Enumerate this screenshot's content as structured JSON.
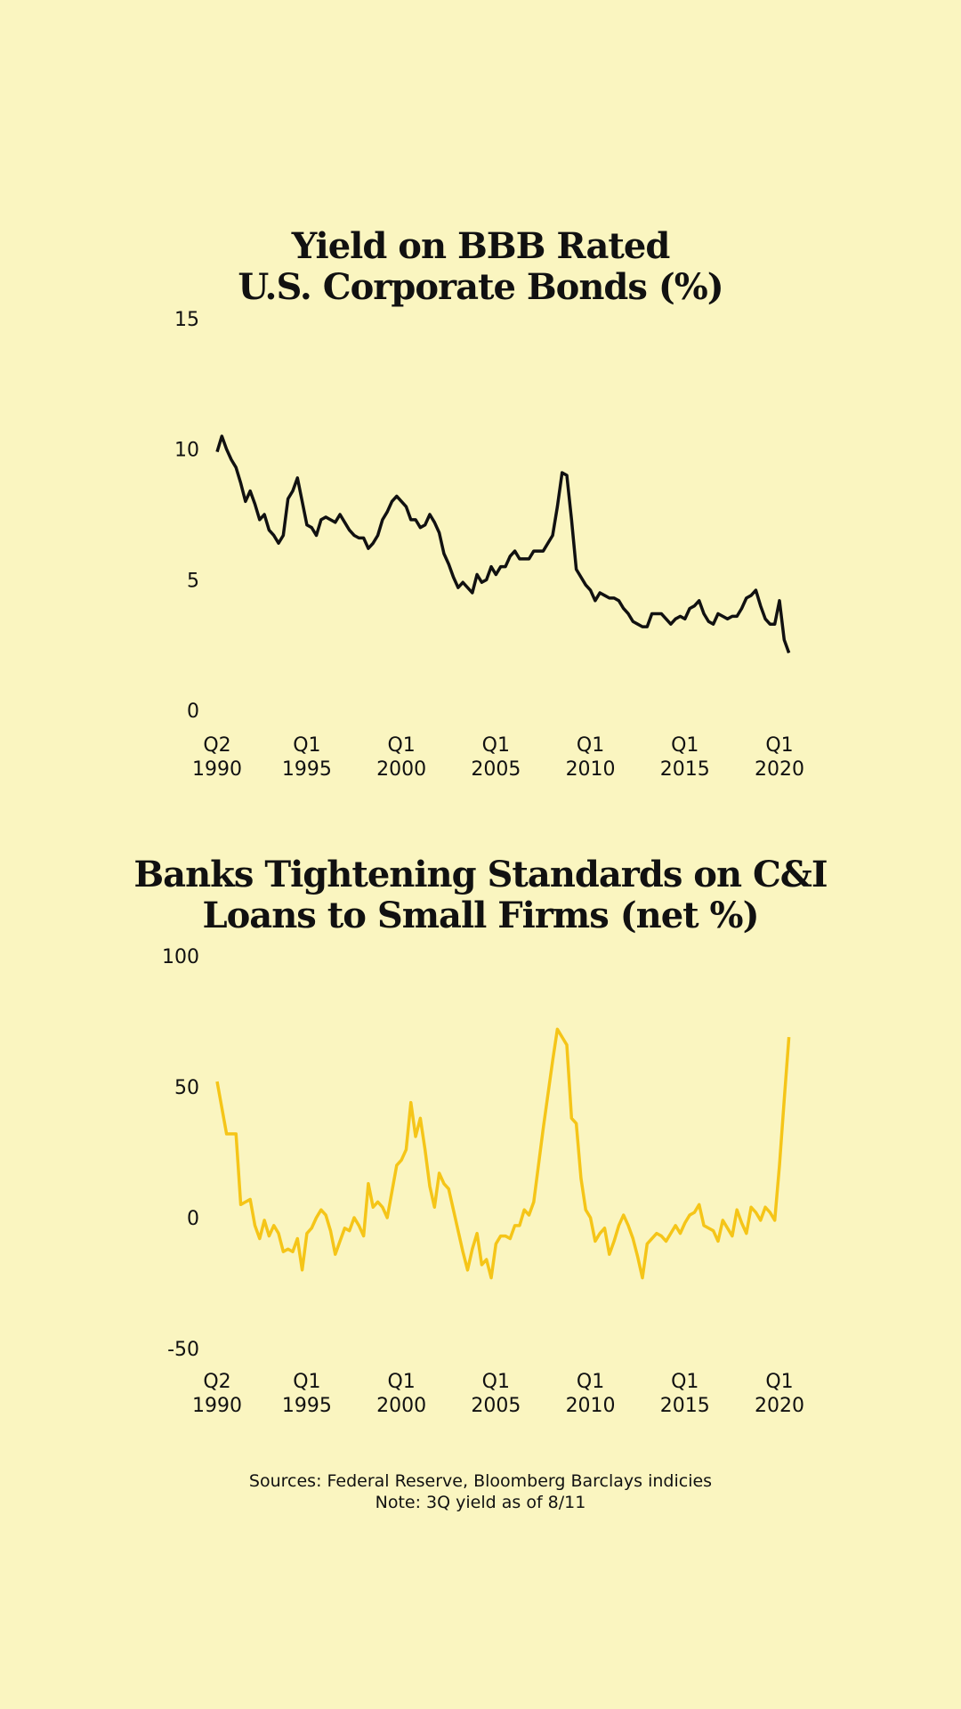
{
  "chart_data": [
    {
      "type": "line",
      "title": [
        "Yield on BBB Rated",
        "U.S. Corporate Bonds (%)"
      ],
      "categories": [
        "Q2 1990",
        null,
        null,
        null,
        null,
        null,
        null,
        null,
        null,
        null,
        null,
        null,
        null,
        null,
        null,
        null,
        null,
        null,
        null,
        "Q1 1995",
        null,
        null,
        null,
        null,
        null,
        null,
        null,
        null,
        null,
        null,
        null,
        null,
        null,
        null,
        null,
        null,
        null,
        null,
        null,
        "Q1 2000",
        null,
        null,
        null,
        null,
        null,
        null,
        null,
        null,
        null,
        null,
        null,
        null,
        null,
        null,
        null,
        null,
        null,
        null,
        null,
        "Q1 2005",
        null,
        null,
        null,
        null,
        null,
        null,
        null,
        null,
        null,
        null,
        null,
        null,
        null,
        null,
        null,
        null,
        null,
        null,
        null,
        "Q1 2010",
        null,
        null,
        null,
        null,
        null,
        null,
        null,
        null,
        null,
        null,
        null,
        null,
        null,
        null,
        null,
        null,
        null,
        null,
        null,
        "Q1 2015",
        null,
        null,
        null,
        null,
        null,
        null,
        null,
        null,
        null,
        null,
        null,
        null,
        null,
        null,
        null,
        null,
        null,
        null,
        null,
        "Q1 2020",
        null,
        null
      ],
      "series": [
        {
          "color": "#111111",
          "values": [
            9.9,
            10.5,
            10.0,
            9.6,
            9.3,
            8.7,
            8.0,
            8.4,
            7.9,
            7.3,
            7.5,
            6.9,
            6.7,
            6.4,
            6.7,
            8.1,
            8.4,
            8.9,
            8.0,
            7.1,
            7.0,
            6.7,
            7.3,
            7.4,
            7.3,
            7.2,
            7.5,
            7.2,
            6.9,
            6.7,
            6.6,
            6.6,
            6.2,
            6.4,
            6.7,
            7.3,
            7.6,
            8.0,
            8.2,
            8.0,
            7.8,
            7.3,
            7.3,
            7.0,
            7.1,
            7.5,
            7.2,
            6.8,
            6.0,
            5.6,
            5.1,
            4.7,
            4.9,
            4.7,
            4.5,
            5.2,
            4.9,
            5.0,
            5.5,
            5.2,
            5.5,
            5.5,
            5.9,
            6.1,
            5.8,
            5.8,
            5.8,
            6.1,
            6.1,
            6.1,
            6.4,
            6.7,
            7.8,
            9.1,
            9.0,
            7.3,
            5.4,
            5.1,
            4.8,
            4.6,
            4.2,
            4.5,
            4.4,
            4.3,
            4.3,
            4.2,
            3.9,
            3.7,
            3.4,
            3.3,
            3.2,
            3.2,
            3.7,
            3.7,
            3.7,
            3.5,
            3.3,
            3.5,
            3.6,
            3.5,
            3.9,
            4.0,
            4.2,
            3.7,
            3.4,
            3.3,
            3.7,
            3.6,
            3.5,
            3.6,
            3.6,
            3.9,
            4.3,
            4.4,
            4.6,
            4.0,
            3.5,
            3.3,
            3.3,
            4.2,
            2.7,
            2.2
          ]
        }
      ],
      "ylim": [
        0,
        15
      ],
      "yticks": [
        0,
        5,
        10,
        15
      ]
    },
    {
      "type": "line",
      "title": [
        "Banks Tightening Standards on C&I",
        "Loans to Small Firms (net %)"
      ],
      "categories": [
        "Q2 1990",
        null,
        null,
        null,
        null,
        null,
        null,
        null,
        null,
        null,
        null,
        null,
        null,
        null,
        null,
        null,
        null,
        null,
        null,
        "Q1 1995",
        null,
        null,
        null,
        null,
        null,
        null,
        null,
        null,
        null,
        null,
        null,
        null,
        null,
        null,
        null,
        null,
        null,
        null,
        null,
        "Q1 2000",
        null,
        null,
        null,
        null,
        null,
        null,
        null,
        null,
        null,
        null,
        null,
        null,
        null,
        null,
        null,
        null,
        null,
        null,
        null,
        "Q1 2005",
        null,
        null,
        null,
        null,
        null,
        null,
        null,
        null,
        null,
        null,
        null,
        null,
        null,
        null,
        null,
        null,
        null,
        null,
        null,
        "Q1 2010",
        null,
        null,
        null,
        null,
        null,
        null,
        null,
        null,
        null,
        null,
        null,
        null,
        null,
        null,
        null,
        null,
        null,
        null,
        null,
        "Q1 2015",
        null,
        null,
        null,
        null,
        null,
        null,
        null,
        null,
        null,
        null,
        null,
        null,
        null,
        null,
        null,
        null,
        null,
        null,
        null,
        "Q1 2020",
        null,
        null
      ],
      "series": [
        {
          "color": "#f5c518",
          "values": [
            52,
            42,
            32,
            32,
            32,
            5,
            6,
            7,
            -3,
            -8,
            -1,
            -7,
            -3,
            -6,
            -13,
            -12,
            -13,
            -8,
            -20,
            -6,
            -4,
            0,
            3,
            1,
            -5,
            -14,
            -9,
            -4,
            -5,
            0,
            -3,
            -7,
            13,
            4,
            6,
            4,
            0,
            10,
            20,
            22,
            26,
            44,
            31,
            38,
            26,
            12,
            4,
            17,
            13,
            11,
            3,
            -5,
            -13,
            -20,
            -12,
            -6,
            -18,
            -16,
            -23,
            -10,
            -7,
            -7,
            -8,
            -3,
            -3,
            3,
            1,
            6,
            20,
            34,
            47,
            60,
            72,
            69,
            66,
            38,
            36,
            15,
            3,
            0,
            -9,
            -6,
            -4,
            -14,
            -9,
            -3,
            1,
            -3,
            -8,
            -15,
            -23,
            -10,
            -8,
            -6,
            -7,
            -9,
            -6,
            -3,
            -6,
            -2,
            1,
            2,
            5,
            -3,
            -4,
            -5,
            -9,
            -1,
            -4,
            -7,
            3,
            -2,
            -6,
            4,
            2,
            -1,
            4,
            2,
            -1,
            20,
            45,
            69
          ]
        }
      ],
      "ylim": [
        -50,
        100
      ],
      "yticks": [
        -50,
        0,
        50,
        100
      ]
    }
  ],
  "notes": [
    "Sources: Federal Reserve, Bloomberg Barclays indicies",
    "Note: 3Q yield as of 8/11"
  ]
}
